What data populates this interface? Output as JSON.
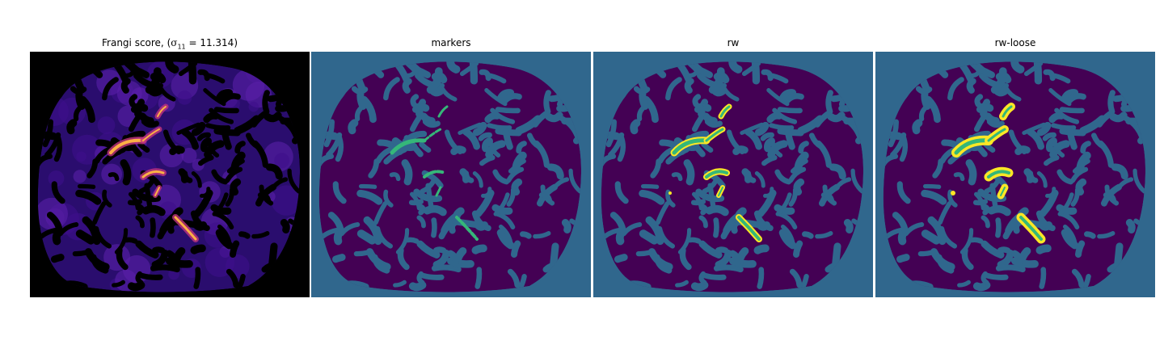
{
  "figure": {
    "panels": [
      {
        "title": "Frangi score, ",
        "title_math": "σ",
        "title_sub": "11",
        "title_tail": " = 11.314)",
        "title_open": "(",
        "kind": "frangi",
        "background": "#000000"
      },
      {
        "title": "markers",
        "kind": "markers",
        "background": "#30678d"
      },
      {
        "title": "rw",
        "kind": "rw",
        "background": "#30678d"
      },
      {
        "title": "rw-loose",
        "kind": "rw-loose",
        "background": "#30678d"
      }
    ],
    "colors": {
      "viridis_dark": "#440154",
      "viridis_mid": "#30678d",
      "viridis_green": "#35b779",
      "viridis_yellow": "#fde725",
      "frangi_low": "#3b0f8c",
      "frangi_high": "#fcb045",
      "black": "#000000"
    }
  }
}
